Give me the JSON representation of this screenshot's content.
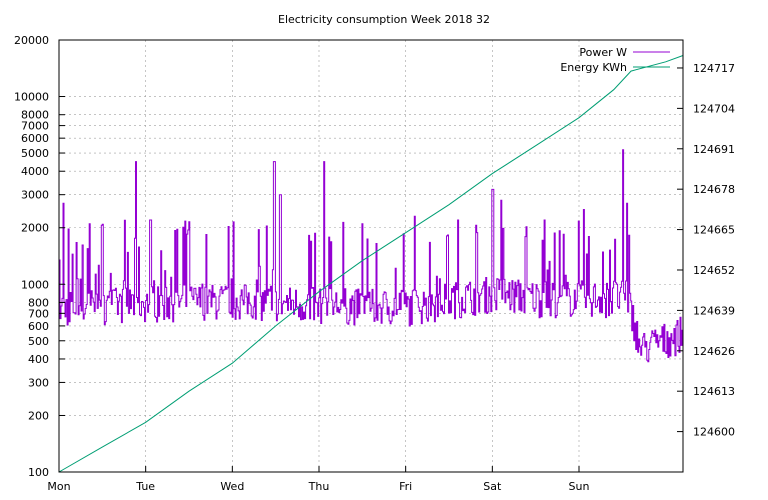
{
  "chart_data": {
    "type": "line",
    "title": "Electricity consumption Week 2018 32",
    "legend_position": "top-right",
    "grid": true,
    "x": {
      "categories": [
        "Mon",
        "Tue",
        "Wed",
        "Thu",
        "Fri",
        "Sat",
        "Sun"
      ],
      "range_days": [
        0,
        7.2
      ]
    },
    "y_left": {
      "scale": "log",
      "range": [
        100,
        20000
      ],
      "ticks": [
        100,
        200,
        300,
        400,
        500,
        600,
        700,
        800,
        1000,
        2000,
        3000,
        4000,
        5000,
        6000,
        7000,
        8000,
        10000,
        20000
      ],
      "tick_labels": [
        "100",
        "200",
        "300",
        "400",
        "500",
        "600",
        "700",
        "800",
        "1000",
        "2000",
        "3000",
        "4000",
        "5000",
        "6000",
        "7000",
        "8000",
        "10000",
        "20000"
      ]
    },
    "y_right": {
      "scale": "linear",
      "range": [
        124587,
        124726
      ],
      "ticks": [
        124600,
        124613,
        124626,
        124639,
        124652,
        124665,
        124678,
        124691,
        124704,
        124717
      ],
      "tick_labels": [
        "124600",
        "124613",
        "124626",
        "124639",
        "124652",
        "124665",
        "124678",
        "124691",
        "124704",
        "124717"
      ]
    },
    "series": [
      {
        "name": "Power W",
        "color": "#9400d3",
        "axis": "left",
        "baseline_by_day": [
          {
            "day": 0,
            "value": 750
          },
          {
            "day": 1,
            "value": 800
          },
          {
            "day": 2,
            "value": 820
          },
          {
            "day": 3,
            "value": 780
          },
          {
            "day": 4,
            "value": 760
          },
          {
            "day": 5,
            "value": 900
          },
          {
            "day": 5.5,
            "value": 850
          },
          {
            "day": 6.55,
            "value": 850
          },
          {
            "day": 6.7,
            "value": 450
          },
          {
            "day": 7.2,
            "value": 550
          }
        ],
        "peaks": [
          {
            "day": 0.05,
            "value": 2700
          },
          {
            "day": 0.35,
            "value": 2100
          },
          {
            "day": 0.88,
            "value": 4500
          },
          {
            "day": 1.05,
            "value": 2200
          },
          {
            "day": 1.5,
            "value": 2150
          },
          {
            "day": 2.48,
            "value": 4500
          },
          {
            "day": 2.55,
            "value": 3000
          },
          {
            "day": 3.05,
            "value": 4500
          },
          {
            "day": 3.5,
            "value": 2100
          },
          {
            "day": 4.1,
            "value": 2300
          },
          {
            "day": 4.6,
            "value": 2200
          },
          {
            "day": 5.0,
            "value": 3200
          },
          {
            "day": 5.1,
            "value": 2800
          },
          {
            "day": 5.6,
            "value": 2200
          },
          {
            "day": 6.05,
            "value": 2500
          },
          {
            "day": 6.5,
            "value": 5200
          },
          {
            "day": 6.55,
            "value": 2700
          }
        ]
      },
      {
        "name": "Energy KWh",
        "color": "#009e73",
        "axis": "right",
        "points": [
          {
            "day": 0,
            "value": 124587
          },
          {
            "day": 0.5,
            "value": 124595
          },
          {
            "day": 1,
            "value": 124603
          },
          {
            "day": 1.5,
            "value": 124613
          },
          {
            "day": 2,
            "value": 124622
          },
          {
            "day": 2.5,
            "value": 124634
          },
          {
            "day": 3,
            "value": 124645
          },
          {
            "day": 3.5,
            "value": 124655
          },
          {
            "day": 4,
            "value": 124664
          },
          {
            "day": 4.5,
            "value": 124673
          },
          {
            "day": 5,
            "value": 124683
          },
          {
            "day": 5.5,
            "value": 124692
          },
          {
            "day": 6,
            "value": 124701
          },
          {
            "day": 6.4,
            "value": 124710
          },
          {
            "day": 6.6,
            "value": 124716
          },
          {
            "day": 7,
            "value": 124719
          },
          {
            "day": 7.2,
            "value": 124721
          }
        ]
      }
    ]
  }
}
